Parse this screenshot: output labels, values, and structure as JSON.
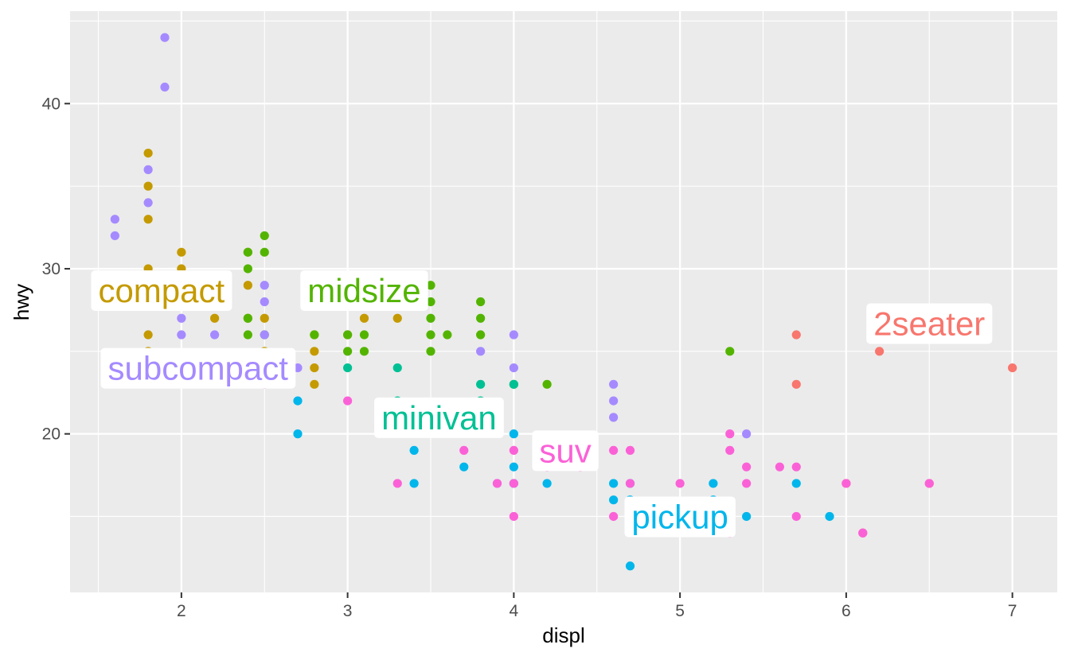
{
  "chart_data": {
    "type": "scatter",
    "title": "",
    "xlabel": "displ",
    "ylabel": "hwy",
    "xlim": [
      1.33,
      7.27
    ],
    "ylim": [
      10.4,
      45.6
    ],
    "x_ticks": [
      2,
      3,
      4,
      5,
      6,
      7
    ],
    "y_ticks": [
      20,
      30,
      40
    ],
    "grid": true,
    "legend": "none",
    "series": [
      {
        "name": "2seater",
        "color": "#F8766D",
        "points": [
          [
            5.7,
            26
          ],
          [
            5.7,
            23
          ],
          [
            6.2,
            26
          ],
          [
            6.2,
            25
          ],
          [
            7.0,
            24
          ],
          [
            6.1,
            14
          ],
          [
            6.0,
            17
          ],
          [
            6.5,
            17
          ]
        ]
      },
      {
        "name": "compact",
        "color": "#C49A00",
        "points": [
          [
            1.8,
            37
          ],
          [
            1.8,
            35
          ],
          [
            1.8,
            33
          ],
          [
            1.8,
            30
          ],
          [
            1.8,
            29
          ],
          [
            1.8,
            26
          ],
          [
            1.8,
            25
          ],
          [
            2.0,
            31
          ],
          [
            2.0,
            30
          ],
          [
            2.0,
            29
          ],
          [
            2.0,
            28
          ],
          [
            2.2,
            29
          ],
          [
            2.2,
            27
          ],
          [
            2.4,
            31
          ],
          [
            2.4,
            29
          ],
          [
            2.4,
            27
          ],
          [
            2.5,
            27
          ],
          [
            2.5,
            25
          ],
          [
            2.8,
            26
          ],
          [
            2.8,
            25
          ],
          [
            2.8,
            24
          ],
          [
            2.8,
            23
          ],
          [
            3.0,
            26
          ],
          [
            3.1,
            27
          ],
          [
            3.3,
            27
          ]
        ]
      },
      {
        "name": "midsize",
        "color": "#53B400",
        "points": [
          [
            1.8,
            29
          ],
          [
            2.0,
            29
          ],
          [
            2.0,
            28
          ],
          [
            2.4,
            31
          ],
          [
            2.4,
            30
          ],
          [
            2.4,
            27
          ],
          [
            2.4,
            26
          ],
          [
            2.5,
            32
          ],
          [
            2.5,
            31
          ],
          [
            2.5,
            26
          ],
          [
            2.8,
            26
          ],
          [
            3.0,
            26
          ],
          [
            3.0,
            25
          ],
          [
            3.1,
            26
          ],
          [
            3.1,
            25
          ],
          [
            3.3,
            28
          ],
          [
            3.5,
            29
          ],
          [
            3.5,
            28
          ],
          [
            3.5,
            27
          ],
          [
            3.5,
            26
          ],
          [
            3.5,
            25
          ],
          [
            3.6,
            26
          ],
          [
            3.8,
            28
          ],
          [
            3.8,
            27
          ],
          [
            3.8,
            26
          ],
          [
            4.0,
            23
          ],
          [
            4.2,
            23
          ],
          [
            5.3,
            25
          ]
        ]
      },
      {
        "name": "minivan",
        "color": "#00C094",
        "points": [
          [
            2.4,
            24
          ],
          [
            3.0,
            24
          ],
          [
            3.3,
            24
          ],
          [
            3.3,
            22
          ],
          [
            3.8,
            23
          ],
          [
            3.8,
            22
          ],
          [
            3.8,
            21
          ],
          [
            4.0,
            23
          ]
        ]
      },
      {
        "name": "pickup",
        "color": "#00B6EB",
        "points": [
          [
            2.7,
            22
          ],
          [
            2.7,
            20
          ],
          [
            3.4,
            19
          ],
          [
            3.4,
            17
          ],
          [
            3.7,
            18
          ],
          [
            4.0,
            20
          ],
          [
            4.0,
            18
          ],
          [
            4.0,
            17
          ],
          [
            4.2,
            17
          ],
          [
            4.6,
            17
          ],
          [
            4.6,
            16
          ],
          [
            4.7,
            17
          ],
          [
            4.7,
            16
          ],
          [
            4.7,
            12
          ],
          [
            5.2,
            17
          ],
          [
            5.2,
            16
          ],
          [
            5.4,
            15
          ],
          [
            5.7,
            17
          ],
          [
            5.9,
            15
          ]
        ]
      },
      {
        "name": "subcompact",
        "color": "#A58AFF",
        "points": [
          [
            1.6,
            33
          ],
          [
            1.6,
            32
          ],
          [
            1.6,
            29
          ],
          [
            1.8,
            36
          ],
          [
            1.8,
            34
          ],
          [
            1.9,
            44
          ],
          [
            1.9,
            41
          ],
          [
            2.0,
            27
          ],
          [
            2.0,
            26
          ],
          [
            2.2,
            26
          ],
          [
            2.5,
            29
          ],
          [
            2.5,
            28
          ],
          [
            2.5,
            26
          ],
          [
            2.7,
            24
          ],
          [
            3.8,
            25
          ],
          [
            4.0,
            26
          ],
          [
            4.0,
            24
          ],
          [
            4.6,
            23
          ],
          [
            4.6,
            22
          ],
          [
            4.6,
            21
          ],
          [
            5.4,
            20
          ],
          [
            3.9,
            17
          ]
        ]
      },
      {
        "name": "suv",
        "color": "#FB61D7",
        "points": [
          [
            2.5,
            24
          ],
          [
            2.5,
            23
          ],
          [
            3.0,
            22
          ],
          [
            3.3,
            17
          ],
          [
            3.7,
            19
          ],
          [
            3.9,
            17
          ],
          [
            4.0,
            19
          ],
          [
            4.0,
            17
          ],
          [
            4.0,
            15
          ],
          [
            4.2,
            18
          ],
          [
            4.4,
            18
          ],
          [
            4.6,
            19
          ],
          [
            4.6,
            15
          ],
          [
            4.7,
            19
          ],
          [
            4.7,
            17
          ],
          [
            4.7,
            15
          ],
          [
            5.0,
            17
          ],
          [
            5.3,
            20
          ],
          [
            5.3,
            19
          ],
          [
            5.3,
            15
          ],
          [
            5.3,
            14
          ],
          [
            5.4,
            18
          ],
          [
            5.4,
            17
          ],
          [
            5.6,
            18
          ],
          [
            5.7,
            18
          ],
          [
            5.7,
            15
          ],
          [
            6.1,
            14
          ],
          [
            6.0,
            17
          ],
          [
            6.5,
            17
          ]
        ]
      }
    ],
    "labels": [
      {
        "text": "2seater",
        "color": "#F8766D",
        "x": 6.5,
        "y": 26.7
      },
      {
        "text": "compact",
        "color": "#C49A00",
        "x": 1.88,
        "y": 28.7
      },
      {
        "text": "midsize",
        "color": "#53B400",
        "x": 3.1,
        "y": 28.7
      },
      {
        "text": "minivan",
        "color": "#00C094",
        "x": 3.55,
        "y": 21.0
      },
      {
        "text": "pickup",
        "color": "#00B6EB",
        "x": 5.0,
        "y": 15.0
      },
      {
        "text": "subcompact",
        "color": "#A58AFF",
        "x": 2.1,
        "y": 24.0
      },
      {
        "text": "suv",
        "color": "#FB61D7",
        "x": 4.31,
        "y": 19.0
      }
    ]
  }
}
